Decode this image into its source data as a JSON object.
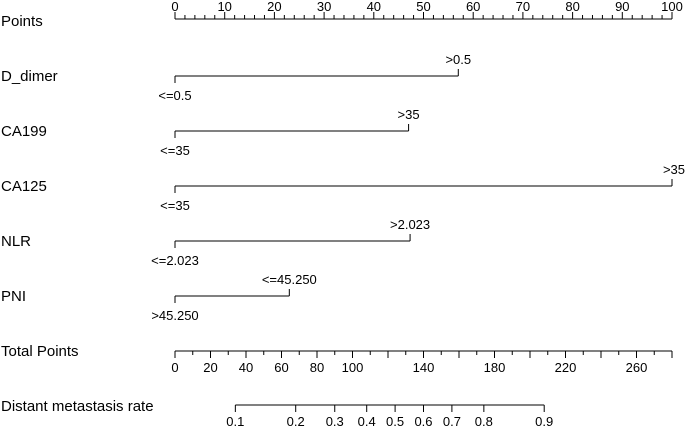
{
  "chart_data": {
    "type": "nomogram",
    "points_scale": {
      "label": "Points",
      "min": 0,
      "max": 100,
      "major_ticks": [
        "0",
        "10",
        "20",
        "30",
        "40",
        "50",
        "60",
        "70",
        "80",
        "90",
        "100"
      ],
      "minor_step": 2
    },
    "variables": [
      {
        "name": "D_dimer",
        "low_label": "<=0.5",
        "high_label": ">0.5",
        "points": 57
      },
      {
        "name": "CA199",
        "low_label": "<=35",
        "high_label": ">35",
        "points": 47
      },
      {
        "name": "CA125",
        "low_label": "<=35",
        "high_label": ">35",
        "points": 100
      },
      {
        "name": "NLR",
        "low_label": "<=2.023",
        "high_label": ">2.023",
        "points": 47.3
      },
      {
        "name": "PNI",
        "low_label": ">45.250",
        "high_label": "<=45.250",
        "points": 23
      }
    ],
    "total_points": {
      "label": "Total Points",
      "min": 0,
      "max": 280,
      "tick_labels": [
        "0",
        "20",
        "40",
        "60",
        "80",
        "100",
        "140",
        "180",
        "220",
        "260"
      ],
      "minor_step": 10
    },
    "risk_scale": {
      "label": "Distant metastasis rate",
      "ticks": [
        {
          "label": "0.1",
          "points": 34
        },
        {
          "label": "0.2",
          "points": 68
        },
        {
          "label": "0.3",
          "points": 90
        },
        {
          "label": "0.4",
          "points": 108
        },
        {
          "label": "0.5",
          "points": 124
        },
        {
          "label": "0.6",
          "points": 140
        },
        {
          "label": "0.7",
          "points": 156
        },
        {
          "label": "0.8",
          "points": 174
        },
        {
          "label": "0.9",
          "points": 208
        }
      ]
    }
  }
}
